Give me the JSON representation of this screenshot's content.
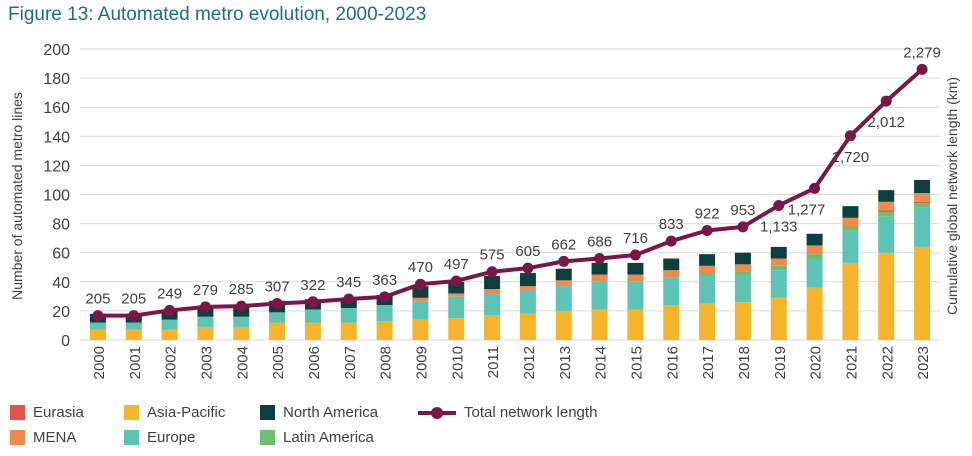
{
  "title": "Figure 13: Automated metro evolution, 2000-2023",
  "colors": {
    "Eurasia": "#e8524a",
    "MENA": "#ef8a4c",
    "Asia-Pacific": "#f6b42a",
    "Europe": "#5cc4b4",
    "North America": "#0d3f3f",
    "Latin America": "#6dbf6c",
    "line": "#7b1746",
    "title": "#1f6f7a",
    "grid": "#d9d9d9"
  },
  "legend": {
    "eurasia": "Eurasia",
    "mena": "MENA",
    "asia_pacific": "Asia-Pacific",
    "europe": "Europe",
    "north_america": "North America",
    "latin_america": "Latin America",
    "total": "Total network length"
  },
  "chart_data": {
    "type": "bar",
    "title": "Figure 13: Automated metro evolution, 2000-2023",
    "ylabel": "Number of automated metro lines",
    "y2label": "Cumulative global network length (km)",
    "ylim": [
      0,
      200
    ],
    "yticks": [
      0,
      20,
      40,
      60,
      80,
      100,
      120,
      140,
      160,
      180,
      200
    ],
    "grid": true,
    "legend_position": "bottom",
    "categories": [
      "2000",
      "2001",
      "2002",
      "2003",
      "2004",
      "2005",
      "2006",
      "2007",
      "2008",
      "2009",
      "2010",
      "2011",
      "2012",
      "2013",
      "2014",
      "2015",
      "2016",
      "2017",
      "2018",
      "2019",
      "2020",
      "2021",
      "2022",
      "2023"
    ],
    "stacked": true,
    "series": [
      {
        "name": "Asia-Pacific",
        "values": [
          7,
          7,
          7,
          9,
          9,
          12,
          12,
          12,
          13,
          14,
          15,
          17,
          18,
          20,
          21,
          21,
          24,
          25,
          26,
          29,
          36,
          53,
          60,
          64
        ]
      },
      {
        "name": "Europe",
        "values": [
          5,
          5,
          7,
          7,
          7,
          7,
          9,
          10,
          11,
          13,
          15,
          15,
          16,
          17,
          19,
          19,
          19,
          19,
          19,
          19,
          20,
          22,
          25,
          27
        ]
      },
      {
        "name": "Latin America",
        "values": [
          0,
          0,
          0,
          0,
          0,
          0,
          0,
          0,
          0,
          0,
          0,
          0,
          0,
          0,
          0,
          0,
          0,
          2,
          2,
          3,
          3,
          3,
          3,
          3
        ]
      },
      {
        "name": "Eurasia",
        "values": [
          0,
          0,
          0,
          0,
          0,
          0,
          0,
          0,
          0,
          0,
          0,
          0,
          0,
          0,
          0,
          0,
          0,
          0,
          0,
          0,
          0,
          0,
          1,
          1
        ]
      },
      {
        "name": "MENA",
        "values": [
          0,
          0,
          0,
          0,
          0,
          0,
          0,
          0,
          0,
          2,
          2,
          3,
          3,
          4,
          5,
          5,
          5,
          5,
          5,
          5,
          6,
          6,
          6,
          6
        ]
      },
      {
        "name": "North America",
        "values": [
          6,
          6,
          7,
          7,
          8,
          8,
          7,
          7,
          7,
          8,
          8,
          9,
          9,
          8,
          8,
          8,
          8,
          8,
          8,
          8,
          8,
          8,
          8,
          9
        ]
      }
    ],
    "line": {
      "name": "Total network length",
      "values": [
        205,
        205,
        249,
        279,
        285,
        307,
        322,
        345,
        363,
        470,
        497,
        575,
        605,
        662,
        686,
        716,
        833,
        922,
        953,
        1133,
        1277,
        1720,
        2012,
        2279
      ],
      "labels": [
        "205",
        "205",
        "249",
        "279",
        "285",
        "307",
        "322",
        "345",
        "363",
        "470",
        "497",
        "575",
        "605",
        "662",
        "686",
        "716",
        "833",
        "922",
        "953",
        "1,133",
        "1,277",
        "1,720",
        "2,012",
        "2,279"
      ]
    }
  }
}
